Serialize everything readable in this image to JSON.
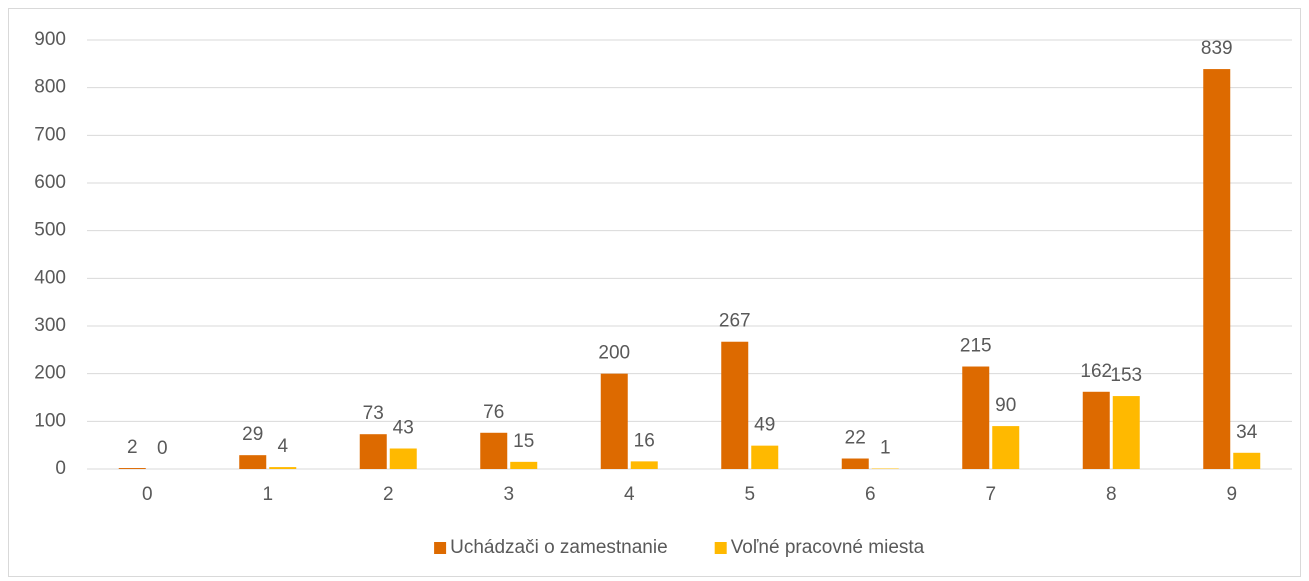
{
  "chart_data": {
    "type": "bar",
    "categories": [
      "0",
      "1",
      "2",
      "3",
      "4",
      "5",
      "6",
      "7",
      "8",
      "9"
    ],
    "series": [
      {
        "name": "Uchádzači o zamestnanie",
        "color": "#dd6a00",
        "values": [
          2,
          29,
          73,
          76,
          200,
          267,
          22,
          215,
          162,
          839
        ]
      },
      {
        "name": "Voľné pracovné miesta",
        "color": "#ffb900",
        "values": [
          0,
          4,
          43,
          15,
          16,
          49,
          1,
          90,
          153,
          34
        ]
      }
    ],
    "ylim": [
      0,
      900
    ],
    "yticks": [
      0,
      100,
      200,
      300,
      400,
      500,
      600,
      700,
      800,
      900
    ],
    "grid": true,
    "legend": "bottom"
  }
}
